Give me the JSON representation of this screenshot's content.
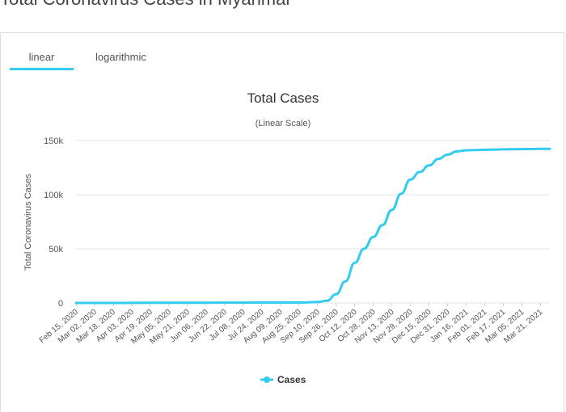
{
  "page": {
    "heading": "Total Coronavirus Cases in Myanmar"
  },
  "tabs": [
    {
      "label": "linear",
      "active": true
    },
    {
      "label": "logarithmic",
      "active": false
    }
  ],
  "colors": {
    "series": "#33ccee",
    "tab_underline": "#33ccee",
    "grid": "#e6e6e6"
  },
  "chart_data": {
    "type": "line",
    "title": "Total Cases",
    "subtitle": "(Linear Scale)",
    "xlabel": "",
    "ylabel": "Total Coronavirus Cases",
    "ylim": [
      0,
      150000
    ],
    "y_ticks": [
      0,
      50000,
      100000,
      150000
    ],
    "y_tick_labels": [
      "0",
      "50k",
      "100k",
      "150k"
    ],
    "x_tick_labels": [
      "Feb 15, 2020",
      "Mar 02, 2020",
      "Mar 18, 2020",
      "Apr 03, 2020",
      "Apr 19, 2020",
      "May 05, 2020",
      "May 21, 2020",
      "Jun 06, 2020",
      "Jun 22, 2020",
      "Jul 08, 2020",
      "Jul 24, 2020",
      "Aug 09, 2020",
      "Aug 25, 2020",
      "Sep 10, 2020",
      "Sep 26, 2020",
      "Oct 12, 2020",
      "Oct 28, 2020",
      "Nov 13, 2020",
      "Nov 29, 2020",
      "Dec 15, 2020",
      "Dec 31, 2020",
      "Jan 16, 2021",
      "Feb 01, 2021",
      "Feb 17, 2021",
      "Mar 05, 2021",
      "Mar 21, 2021"
    ],
    "grid": true,
    "legend": "bottom",
    "series": [
      {
        "name": "Cases",
        "x": [
          "Feb 15, 2020",
          "Mar 02, 2020",
          "Mar 18, 2020",
          "Apr 03, 2020",
          "Apr 19, 2020",
          "May 05, 2020",
          "May 21, 2020",
          "Jun 06, 2020",
          "Jun 22, 2020",
          "Jul 08, 2020",
          "Jul 24, 2020",
          "Aug 09, 2020",
          "Aug 25, 2020",
          "Sep 10, 2020",
          "Sep 18, 2020",
          "Sep 26, 2020",
          "Oct 04, 2020",
          "Oct 12, 2020",
          "Oct 20, 2020",
          "Oct 28, 2020",
          "Nov 05, 2020",
          "Nov 13, 2020",
          "Nov 21, 2020",
          "Nov 29, 2020",
          "Dec 07, 2020",
          "Dec 15, 2020",
          "Dec 23, 2020",
          "Dec 31, 2020",
          "Jan 08, 2021",
          "Jan 16, 2021",
          "Jan 24, 2021",
          "Feb 01, 2021",
          "Feb 09, 2021",
          "Feb 17, 2021",
          "Feb 25, 2021",
          "Mar 05, 2021",
          "Mar 13, 2021",
          "Mar 21, 2021",
          "Mar 29, 2021"
        ],
        "values": [
          0,
          0,
          0,
          100,
          150,
          180,
          200,
          250,
          290,
          320,
          350,
          370,
          400,
          800,
          2000,
          8000,
          20000,
          37000,
          50000,
          61000,
          72000,
          86000,
          101000,
          114000,
          121000,
          127000,
          133000,
          137000,
          140000,
          141000,
          141300,
          141500,
          141700,
          141900,
          142000,
          142100,
          142200,
          142300,
          142400
        ]
      }
    ]
  }
}
